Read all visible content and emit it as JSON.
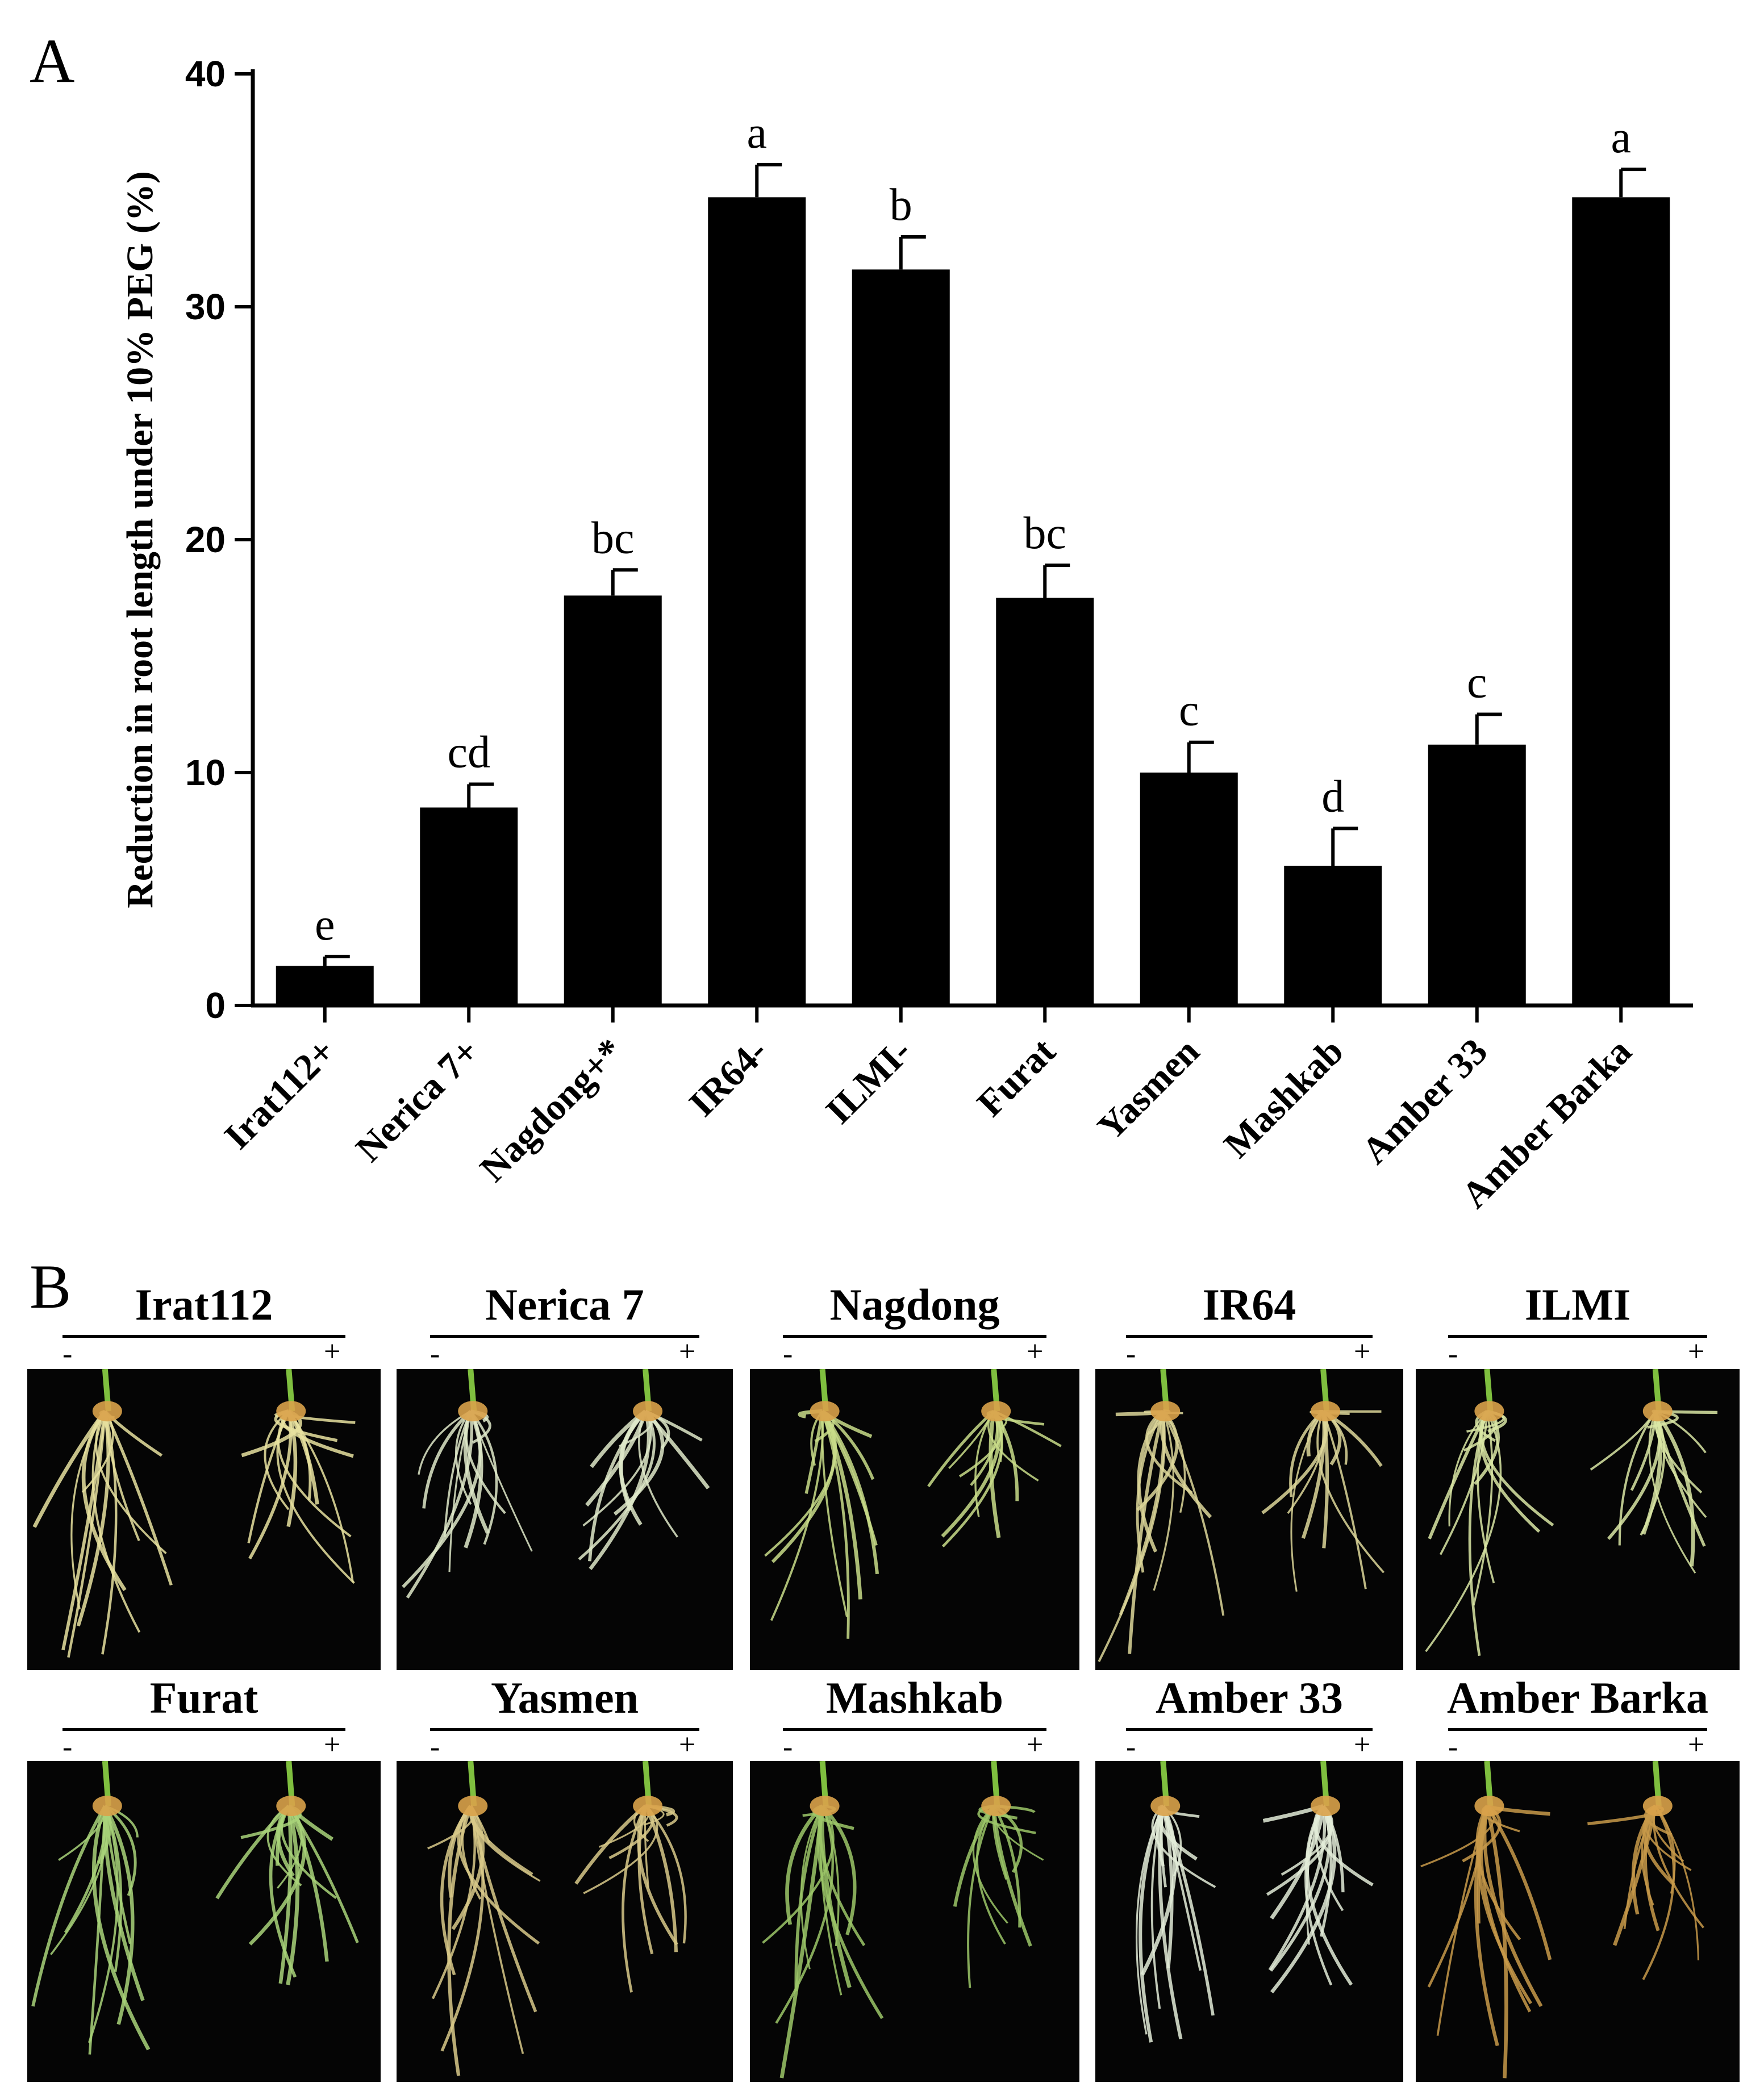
{
  "panels": {
    "a_label": "A",
    "b_label": "B"
  },
  "chart_data": {
    "type": "bar",
    "ylabel": "Reduction in root length under 10% PEG (%)",
    "xlabel": "",
    "ylim": [
      0,
      40
    ],
    "yticks": [
      0,
      10,
      20,
      30,
      40
    ],
    "bar_color": "#000000",
    "categories": [
      "Irat112+",
      "Nerica 7+",
      "Nagdong+*",
      "IR64-",
      "ILMI-",
      "Furat",
      "Yasmen",
      "Mashkab",
      "Amber 33",
      "Amber Barka"
    ],
    "values": [
      1.7,
      8.5,
      17.6,
      34.7,
      31.6,
      17.5,
      10.0,
      6.0,
      11.2,
      34.7
    ],
    "errors": [
      0.4,
      1.0,
      1.1,
      1.4,
      1.4,
      1.4,
      1.3,
      1.6,
      1.3,
      1.2
    ],
    "significance": [
      "e",
      "cd",
      "bc",
      "a",
      "b",
      "bc",
      "c",
      "d",
      "c",
      "a"
    ]
  },
  "photos": {
    "minus_label": "-",
    "plus_label": "+",
    "items": [
      {
        "title": "Irat112",
        "root_tone": "#e8e2a0"
      },
      {
        "title": "Nerica 7",
        "root_tone": "#dfe9c9"
      },
      {
        "title": "Nagdong",
        "root_tone": "#c9dd8a"
      },
      {
        "title": "IR64",
        "root_tone": "#ddd79a"
      },
      {
        "title": "ILMI",
        "root_tone": "#d9e6a4"
      },
      {
        "title": "Furat",
        "root_tone": "#a9d37a"
      },
      {
        "title": "Yasmen",
        "root_tone": "#d8c98a"
      },
      {
        "title": "Mashkab",
        "root_tone": "#9cc768"
      },
      {
        "title": "Amber 33",
        "root_tone": "#e3ecd8"
      },
      {
        "title": "Amber Barka",
        "root_tone": "#c89a4a"
      }
    ]
  }
}
